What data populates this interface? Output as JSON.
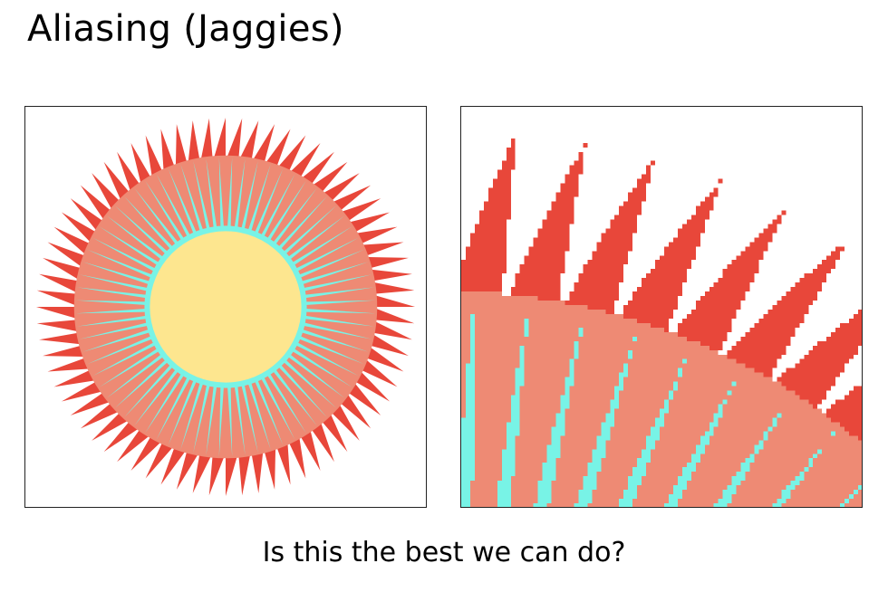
{
  "slide": {
    "title": "Aliasing (Jaggies)",
    "caption": "Is this the best we can do?"
  },
  "figure": {
    "subject": "Starburst of triangular rays around a circle, rendered with hard per-pixel sampling",
    "left_panel": "Full view",
    "right_panel": "Magnified upper-right section showing staircase (jaggy) edges",
    "colors": {
      "outer_rays": "#e8473a",
      "ring": "#ee8a74",
      "inner_rays": "#78f3e6",
      "center_disk": "#fde68f",
      "background": "#ffffff",
      "border": "#222222"
    }
  }
}
